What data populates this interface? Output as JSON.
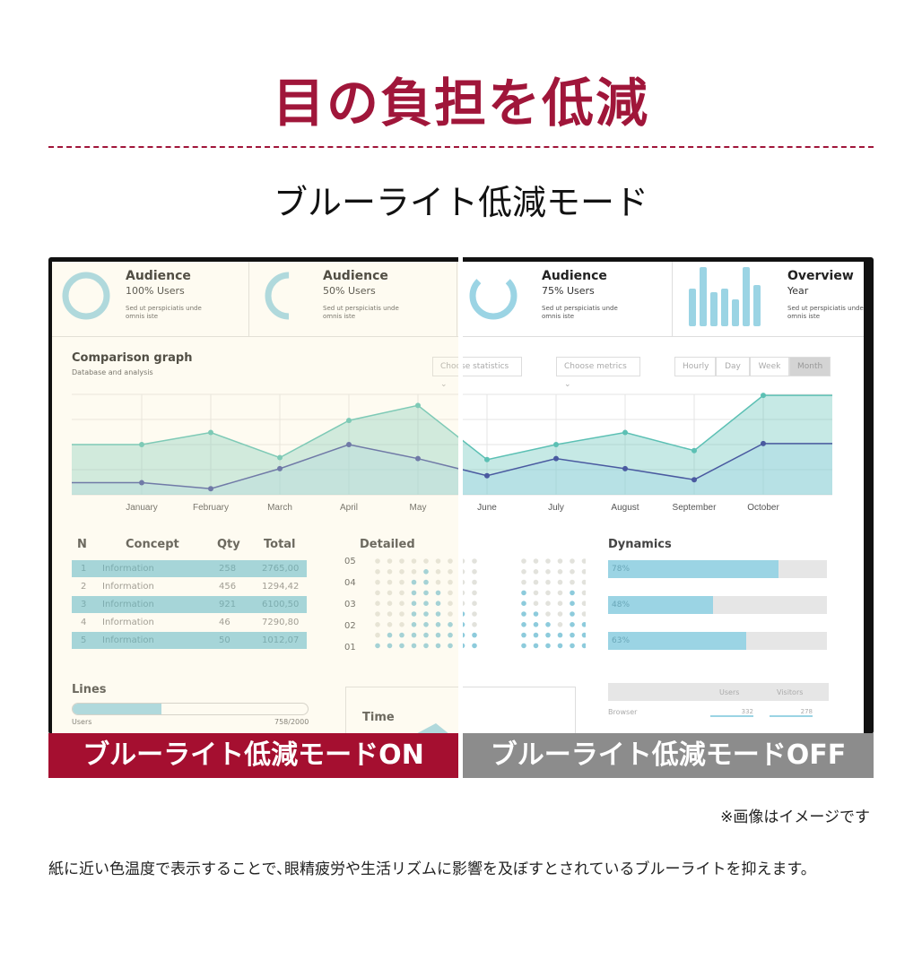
{
  "title": "目の負担を低減",
  "subtitle": "ブルーライト低減モード",
  "dashboard": {
    "cards": [
      {
        "title": "Audience",
        "sub": "100% Users",
        "desc": "Sed ut perspiciatis unde omnis iste",
        "fill": 1.0
      },
      {
        "title": "Audience",
        "sub": "50% Users",
        "desc": "Sed ut perspiciatis unde omnis iste",
        "fill": 0.5
      },
      {
        "title": "Audience",
        "sub": "75% Users",
        "desc": "Sed ut perspiciatis unde omnis iste",
        "fill": 0.75
      },
      {
        "title": "Overview",
        "sub": "Year",
        "desc": "Sed ut perspiciatis unde omnis iste"
      }
    ],
    "comparison": {
      "title": "Comparison graph",
      "sub": "Database and analysis",
      "select1": "Choose statistics",
      "select2": "Choose metrics",
      "periods": [
        "Hourly",
        "Day",
        "Week",
        "Month"
      ],
      "active_period": "Month"
    },
    "table": {
      "headers": [
        "N",
        "Concept",
        "Qty",
        "Total"
      ],
      "rows": [
        [
          "1",
          "Information",
          "258",
          "2765,00"
        ],
        [
          "2",
          "Information",
          "456",
          "1294,42"
        ],
        [
          "3",
          "Information",
          "921",
          "6100,50"
        ],
        [
          "4",
          "Information",
          "46",
          "7290,80"
        ],
        [
          "5",
          "Information",
          "50",
          "1012,07"
        ]
      ]
    },
    "detailed": {
      "title": "Detailed",
      "ylabels": [
        "05",
        "04",
        "03",
        "02",
        "01"
      ],
      "column_levels": [
        1,
        2,
        2,
        7,
        8,
        6,
        3,
        4,
        2,
        6,
        4,
        3,
        2,
        6,
        3,
        3,
        1,
        1
      ]
    },
    "dynamics": {
      "title": "Dynamics",
      "bars": [
        {
          "label": "78%",
          "value": 78
        },
        {
          "label": "48%",
          "value": 48
        },
        {
          "label": "63%",
          "value": 63
        }
      ]
    },
    "lines": {
      "title": "Lines",
      "label": "Users",
      "value": "758/2000",
      "fraction": 0.379
    },
    "time": {
      "title": "Time"
    },
    "browser_table": {
      "headers": [
        "Users",
        "Visitors"
      ],
      "row_label": "Browser",
      "values": [
        "332",
        "278"
      ]
    }
  },
  "chart_data": {
    "type": "area",
    "categories": [
      "January",
      "February",
      "March",
      "April",
      "May",
      "June",
      "July",
      "August",
      "September",
      "October"
    ],
    "series": [
      {
        "values": [
          50,
          62,
          37,
          74,
          89,
          35,
          50,
          62,
          44,
          99
        ],
        "color": "#5cc0b4"
      },
      {
        "values": [
          12,
          6,
          26,
          50,
          36,
          19,
          36,
          26,
          15,
          51
        ],
        "color": "#4a5aa0"
      }
    ],
    "ylim": [
      0,
      100
    ],
    "grid": true
  },
  "banner_on": "ブルーライト低減モードON",
  "banner_off": "ブルーライト低減モードOFF",
  "note": "※画像はイメージです",
  "body": "紙に近い色温度で表示することで､眼精疲労や生活リズムに影響を及ぼすとされているブルーライトを抑えます。",
  "colors": {
    "accent": "#a0163a",
    "on_banner": "#a50f30",
    "off_banner": "#8c8c8c",
    "chart_blue": "#9bd4e4"
  }
}
